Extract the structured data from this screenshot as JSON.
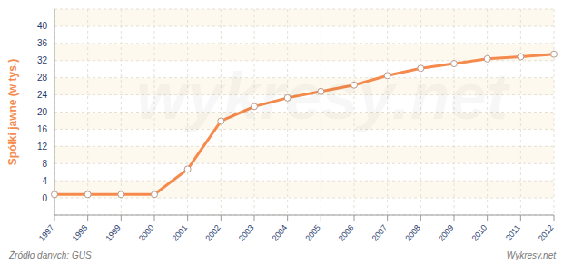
{
  "chart_data": {
    "type": "line",
    "y_label": "Spółki jawne (w tys.)",
    "source": "Źródło danych: GUS",
    "credit": "Wykresy.net",
    "watermark": "wykresy.net",
    "categories": [
      "1997",
      "1998",
      "1999",
      "2000",
      "2001",
      "2002",
      "2003",
      "2004",
      "2005",
      "2006",
      "2007",
      "2008",
      "2009",
      "2010",
      "2011",
      "2012"
    ],
    "values": [
      0.8,
      0.8,
      0.8,
      0.8,
      6.7,
      17.9,
      21.3,
      23.3,
      24.8,
      26.3,
      28.5,
      30.2,
      31.3,
      32.4,
      32.9,
      33.5
    ],
    "color": "#f58a4c",
    "marker": "circle",
    "ylim": [
      -4,
      44
    ],
    "yticks": [
      0,
      4,
      8,
      12,
      16,
      20,
      24,
      28,
      32,
      36,
      40
    ],
    "grid": true
  }
}
